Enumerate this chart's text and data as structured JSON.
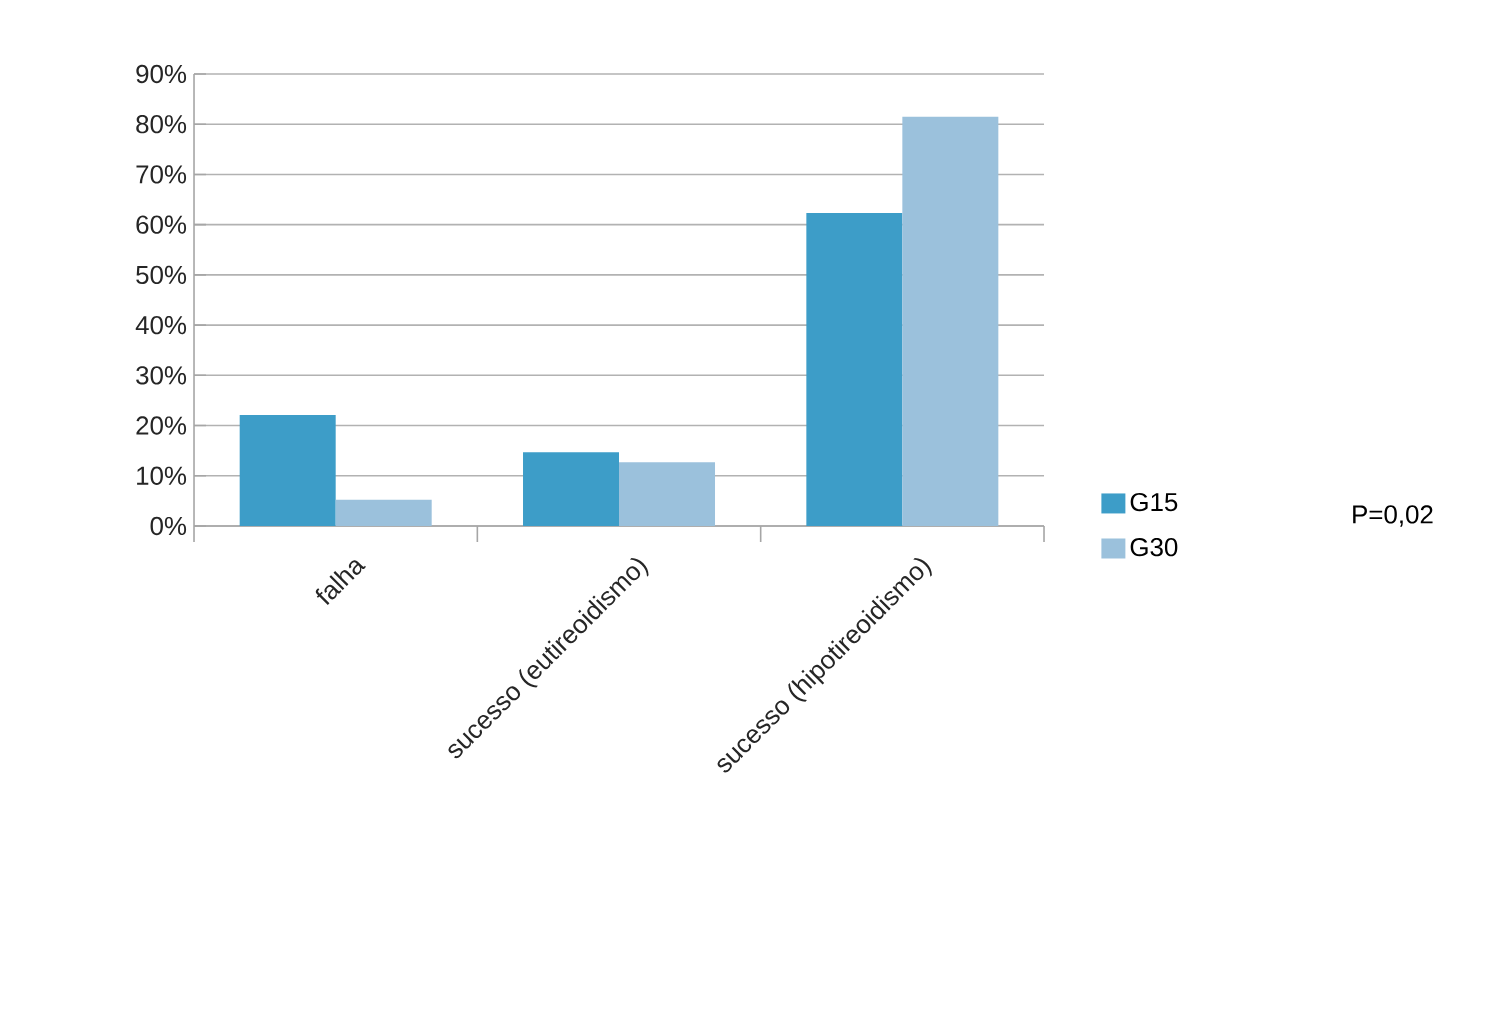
{
  "chart_data": {
    "type": "bar",
    "categories": [
      "falha",
      "sucesso (eutireoidismo)",
      "sucesso (hipotireoidismo)"
    ],
    "series": [
      {
        "name": "G15",
        "color": "#3d9dc8",
        "values": [
          22.1,
          14.7,
          62.3
        ]
      },
      {
        "name": "G30",
        "color": "#9bc1dc",
        "values": [
          5.2,
          12.7,
          81.5
        ]
      }
    ],
    "ylim": [
      0,
      90
    ],
    "yticks": [
      {
        "value": 0,
        "label": "0%"
      },
      {
        "value": 10,
        "label": "10%"
      },
      {
        "value": 20,
        "label": "20%"
      },
      {
        "value": 30,
        "label": "30%"
      },
      {
        "value": 40,
        "label": "40%"
      },
      {
        "value": 50,
        "label": "50%"
      },
      {
        "value": 60,
        "label": "60%"
      },
      {
        "value": 70,
        "label": "70%"
      },
      {
        "value": 80,
        "label": "80%"
      },
      {
        "value": 90,
        "label": "90%"
      }
    ],
    "grid": "y",
    "legend": "right",
    "annotations": [
      "P=0,02"
    ]
  }
}
